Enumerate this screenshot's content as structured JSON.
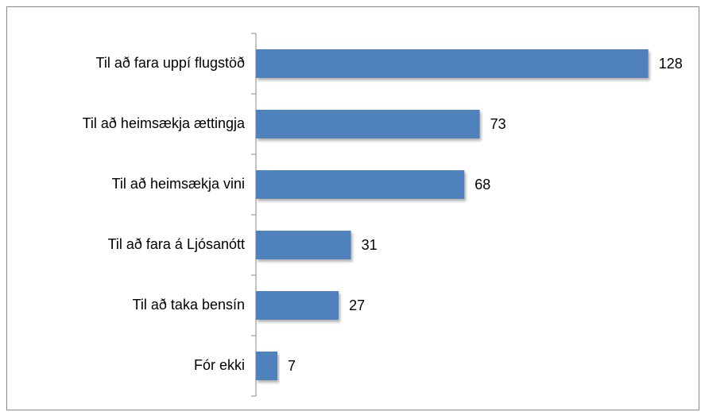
{
  "chart_data": {
    "type": "bar",
    "orientation": "horizontal",
    "categories": [
      "Til að fara uppí flugstöð",
      "Til að heimsækja ættingja",
      "Til að heimsækja vini",
      "Til að fara á Ljósanótt",
      "Til að taka bensín",
      "Fór ekki"
    ],
    "values": [
      128,
      73,
      68,
      31,
      27,
      7
    ],
    "color": "#4f81bd",
    "xlim": [
      0,
      140
    ]
  }
}
